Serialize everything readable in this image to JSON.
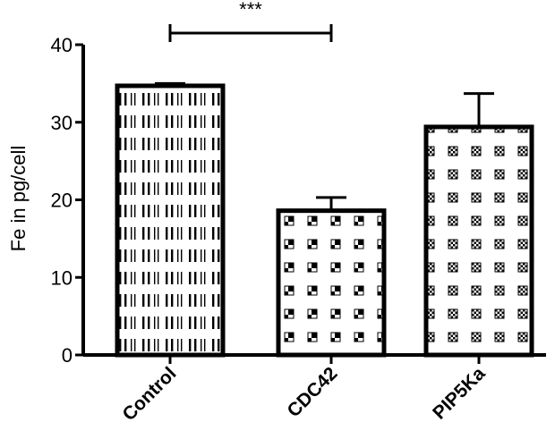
{
  "chart_data": {
    "type": "bar",
    "title": "",
    "xlabel": "",
    "ylabel": "Fe in pg/cell",
    "ylim": [
      0,
      40
    ],
    "yticks": [
      0,
      10,
      20,
      30,
      40
    ],
    "categories": [
      "Control",
      "CDC42",
      "PIP5Ka"
    ],
    "values": [
      34.7,
      18.6,
      29.4
    ],
    "errors": [
      0.3,
      1.7,
      4.3
    ],
    "patterns": [
      "vertical-stripes",
      "corner-squares",
      "checker"
    ],
    "significance": [
      {
        "from": "Control",
        "to": "CDC42",
        "label": "***"
      }
    ],
    "grid": false,
    "legend": "none",
    "bar_fill_color": "#ffffff",
    "bar_edge_color": "#000000"
  }
}
